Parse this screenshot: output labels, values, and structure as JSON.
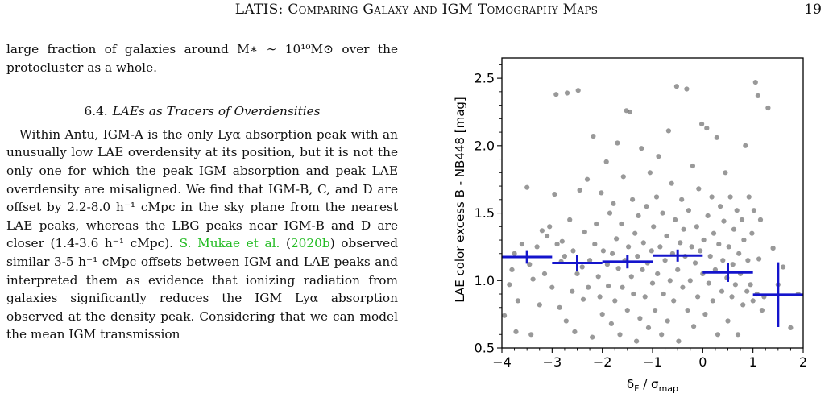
{
  "header": {
    "running_title": "LATIS: Comparing Galaxy and IGM Tomography Maps",
    "page_number": "19"
  },
  "body": {
    "intro_text": "large fraction of galaxies around M∗ ∼ 10¹⁰M⊙ over the protocluster as a whole.",
    "section": {
      "number": "6.4.",
      "title": "LAEs as Tracers of Overdensities"
    },
    "para_part1": "Within Antu, IGM-A is the only Lyα absorption peak with an unusually low LAE overdensity at its position, but it is not the only one for which the peak IGM absorption and peak LAE overdensity are misaligned. We find that IGM-B, C, and D are offset by 2.2-8.0 h⁻¹ cMpc in the sky plane from the nearest LAE peaks, whereas the LBG peaks near IGM-B and D are closer (1.4-3.6 h⁻¹ cMpc). ",
    "citation_author": "S. Mukae et al.",
    "citation_year": "2020b",
    "para_part2": " observed similar 3-5 h⁻¹ cMpc offsets between IGM and LAE peaks and interpreted them as evidence that ionizing radiation from galaxies significantly reduces the IGM Lyα absorption observed at the density peak. Considering that we can model the mean IGM transmission"
  },
  "chart_data": {
    "type": "scatter",
    "xlabel": "δF / σmap",
    "ylabel": "LAE color excess B - NB448 [mag]",
    "xlim": [
      -4,
      2
    ],
    "ylim": [
      0.5,
      2.65
    ],
    "xticks": [
      "−4",
      "−3",
      "−2",
      "−1",
      "0",
      "1",
      "2"
    ],
    "yticks": [
      "0.5",
      "1.0",
      "1.5",
      "2.0",
      "2.5"
    ],
    "grid": false,
    "colors": {
      "points": "#555555",
      "binned": "#1414cc"
    },
    "points": [
      [
        -3.95,
        0.74
      ],
      [
        -3.85,
        0.97
      ],
      [
        -3.8,
        1.08
      ],
      [
        -3.75,
        1.2
      ],
      [
        -3.72,
        0.62
      ],
      [
        -3.68,
        0.85
      ],
      [
        -3.6,
        1.27
      ],
      [
        -3.5,
        1.69
      ],
      [
        -3.45,
        1.12
      ],
      [
        -3.42,
        0.6
      ],
      [
        -3.38,
        1.01
      ],
      [
        -3.3,
        1.25
      ],
      [
        -3.25,
        0.82
      ],
      [
        -3.2,
        1.37
      ],
      [
        -3.15,
        1.05
      ],
      [
        -3.1,
        1.33
      ],
      [
        -3.05,
        1.4
      ],
      [
        -3.0,
        0.95
      ],
      [
        -2.95,
        1.64
      ],
      [
        -2.92,
        2.38
      ],
      [
        -2.9,
        1.27
      ],
      [
        -2.85,
        0.8
      ],
      [
        -2.82,
        1.14
      ],
      [
        -2.8,
        1.29
      ],
      [
        -2.75,
        1.18
      ],
      [
        -2.72,
        0.7
      ],
      [
        -2.7,
        2.39
      ],
      [
        -2.65,
        1.45
      ],
      [
        -2.6,
        0.92
      ],
      [
        -2.58,
        1.22
      ],
      [
        -2.55,
        0.62
      ],
      [
        -2.5,
        1.05
      ],
      [
        -2.48,
        2.41
      ],
      [
        -2.45,
        1.67
      ],
      [
        -2.4,
        1.1
      ],
      [
        -2.38,
        0.86
      ],
      [
        -2.35,
        1.36
      ],
      [
        -2.3,
        1.75
      ],
      [
        -2.28,
        0.95
      ],
      [
        -2.25,
        1.15
      ],
      [
        -2.2,
        0.58
      ],
      [
        -2.18,
        2.07
      ],
      [
        -2.15,
        1.27
      ],
      [
        -2.12,
        1.42
      ],
      [
        -2.08,
        1.03
      ],
      [
        -2.05,
        0.88
      ],
      [
        -2.02,
        1.65
      ],
      [
        -2.0,
        0.75
      ],
      [
        -1.98,
        1.22
      ],
      [
        -1.95,
        2.66
      ],
      [
        -1.92,
        1.88
      ],
      [
        -1.9,
        1.12
      ],
      [
        -1.88,
        0.96
      ],
      [
        -1.85,
        1.5
      ],
      [
        -1.82,
        0.68
      ],
      [
        -1.8,
        1.2
      ],
      [
        -1.78,
        1.57
      ],
      [
        -1.75,
        0.85
      ],
      [
        -1.72,
        1.31
      ],
      [
        -1.7,
        2.02
      ],
      [
        -1.68,
        1.09
      ],
      [
        -1.65,
        0.6
      ],
      [
        -1.62,
        1.42
      ],
      [
        -1.6,
        0.95
      ],
      [
        -1.58,
        1.77
      ],
      [
        -1.55,
        1.15
      ],
      [
        -1.52,
        2.26
      ],
      [
        -1.5,
        0.78
      ],
      [
        -1.48,
        1.25
      ],
      [
        -1.45,
        2.25
      ],
      [
        -1.42,
        1.03
      ],
      [
        -1.4,
        1.6
      ],
      [
        -1.38,
        0.9
      ],
      [
        -1.35,
        1.35
      ],
      [
        -1.32,
        0.55
      ],
      [
        -1.3,
        1.18
      ],
      [
        -1.28,
        1.48
      ],
      [
        -1.25,
        0.72
      ],
      [
        -1.22,
        1.98
      ],
      [
        -1.2,
        1.08
      ],
      [
        -1.18,
        1.28
      ],
      [
        -1.15,
        0.88
      ],
      [
        -1.12,
        1.55
      ],
      [
        -1.1,
        1.13
      ],
      [
        -1.08,
        0.65
      ],
      [
        -1.05,
        1.8
      ],
      [
        -1.02,
        1.22
      ],
      [
        -1.0,
        0.98
      ],
      [
        -0.98,
        1.4
      ],
      [
        -0.95,
        0.78
      ],
      [
        -0.92,
        1.62
      ],
      [
        -0.9,
        1.05
      ],
      [
        -0.88,
        1.92
      ],
      [
        -0.85,
        1.25
      ],
      [
        -0.82,
        0.6
      ],
      [
        -0.8,
        1.5
      ],
      [
        -0.78,
        0.9
      ],
      [
        -0.75,
        1.15
      ],
      [
        -0.72,
        1.33
      ],
      [
        -0.7,
        0.7
      ],
      [
        -0.68,
        2.11
      ],
      [
        -0.65,
        1.0
      ],
      [
        -0.62,
        1.72
      ],
      [
        -0.6,
        1.2
      ],
      [
        -0.58,
        0.85
      ],
      [
        -0.55,
        1.45
      ],
      [
        -0.52,
        2.44
      ],
      [
        -0.5,
        1.08
      ],
      [
        -0.48,
        0.55
      ],
      [
        -0.45,
        1.28
      ],
      [
        -0.42,
        1.6
      ],
      [
        -0.4,
        0.95
      ],
      [
        -0.38,
        1.38
      ],
      [
        -0.35,
        1.18
      ],
      [
        -0.32,
        2.42
      ],
      [
        -0.3,
        0.78
      ],
      [
        -0.28,
        1.52
      ],
      [
        -0.25,
        1.0
      ],
      [
        -0.22,
        1.25
      ],
      [
        -0.2,
        1.85
      ],
      [
        -0.18,
        0.66
      ],
      [
        -0.15,
        1.13
      ],
      [
        -0.12,
        1.4
      ],
      [
        -0.1,
        0.88
      ],
      [
        -0.08,
        1.68
      ],
      [
        -0.05,
        1.22
      ],
      [
        -0.02,
        2.16
      ],
      [
        0.0,
        1.05
      ],
      [
        0.02,
        1.3
      ],
      [
        0.05,
        0.75
      ],
      [
        0.08,
        2.13
      ],
      [
        0.1,
        1.48
      ],
      [
        0.12,
        0.98
      ],
      [
        0.15,
        1.18
      ],
      [
        0.18,
        1.62
      ],
      [
        0.2,
        0.85
      ],
      [
        0.22,
        1.35
      ],
      [
        0.25,
        1.08
      ],
      [
        0.28,
        2.06
      ],
      [
        0.3,
        0.6
      ],
      [
        0.32,
        1.27
      ],
      [
        0.35,
        1.55
      ],
      [
        0.38,
        0.92
      ],
      [
        0.4,
        1.15
      ],
      [
        0.42,
        1.44
      ],
      [
        0.45,
        1.8
      ],
      [
        0.48,
        1.02
      ],
      [
        0.5,
        0.7
      ],
      [
        0.52,
        1.25
      ],
      [
        0.55,
        1.62
      ],
      [
        0.58,
        0.88
      ],
      [
        0.6,
        1.12
      ],
      [
        0.62,
        1.38
      ],
      [
        0.65,
        0.97
      ],
      [
        0.68,
        1.52
      ],
      [
        0.7,
        0.6
      ],
      [
        0.72,
        1.2
      ],
      [
        0.75,
        1.05
      ],
      [
        0.78,
        1.45
      ],
      [
        0.8,
        0.82
      ],
      [
        0.82,
        1.3
      ],
      [
        0.85,
        2.0
      ],
      [
        0.88,
        0.92
      ],
      [
        0.9,
        1.15
      ],
      [
        0.92,
        1.62
      ],
      [
        0.95,
        0.97
      ],
      [
        0.98,
        1.35
      ],
      [
        1.0,
        0.85
      ],
      [
        1.02,
        1.52
      ],
      [
        1.05,
        2.47
      ],
      [
        1.08,
        0.9
      ],
      [
        1.1,
        2.37
      ],
      [
        1.12,
        1.16
      ],
      [
        1.15,
        1.45
      ],
      [
        1.18,
        0.78
      ],
      [
        1.22,
        0.88
      ],
      [
        1.3,
        2.28
      ],
      [
        1.4,
        1.24
      ],
      [
        1.5,
        0.97
      ],
      [
        1.6,
        1.1
      ],
      [
        1.75,
        0.65
      ],
      [
        1.9,
        0.9
      ]
    ],
    "binned": [
      {
        "x": -3.5,
        "xerr": 0.5,
        "y": 1.175,
        "yerr": 0.05
      },
      {
        "x": -2.5,
        "xerr": 0.5,
        "y": 1.13,
        "yerr": 0.06
      },
      {
        "x": -1.5,
        "xerr": 0.5,
        "y": 1.14,
        "yerr": 0.05
      },
      {
        "x": -0.5,
        "xerr": 0.5,
        "y": 1.185,
        "yerr": 0.045
      },
      {
        "x": 0.5,
        "xerr": 0.5,
        "y": 1.06,
        "yerr": 0.07
      },
      {
        "x": 1.5,
        "xerr": 0.5,
        "y": 0.895,
        "yerr": 0.24
      }
    ]
  }
}
